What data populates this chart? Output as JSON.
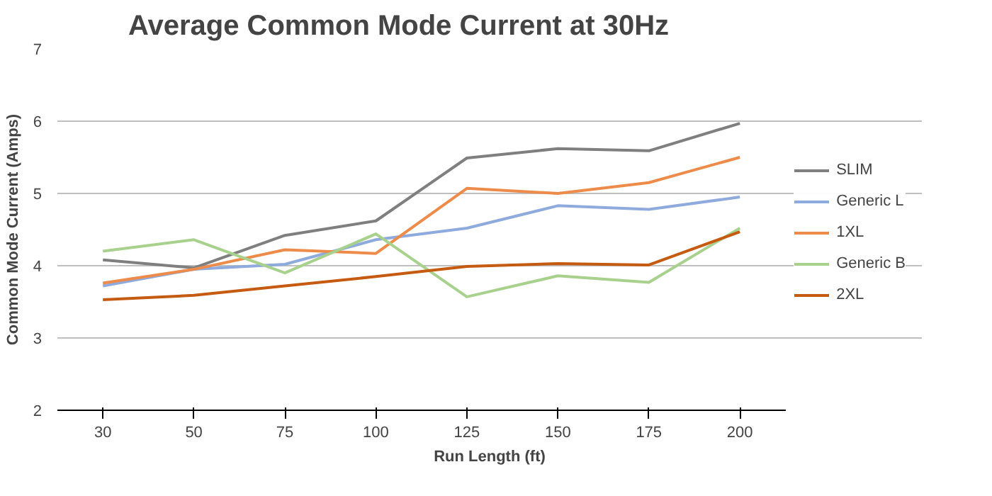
{
  "chart_data": {
    "type": "line",
    "title": "Average Common Mode Current at 30Hz",
    "xlabel": "Run Length (ft)",
    "ylabel": "Common Mode Current (Amps)",
    "categories": [
      "30",
      "50",
      "75",
      "100",
      "125",
      "150",
      "175",
      "200"
    ],
    "ylim": [
      2,
      7
    ],
    "yticks": [
      2,
      3,
      4,
      5,
      6,
      7
    ],
    "grid": "y",
    "legend": "right",
    "marker": "none",
    "line_style": "solid",
    "series": [
      {
        "name": "SLIM",
        "color": "#7f7f7f",
        "values": [
          4.08,
          3.97,
          4.42,
          4.62,
          5.49,
          5.62,
          5.59,
          5.97
        ]
      },
      {
        "name": "Generic L",
        "color": "#8faadc",
        "values": [
          3.72,
          3.95,
          4.02,
          4.36,
          4.52,
          4.83,
          4.78,
          4.95
        ]
      },
      {
        "name": "1XL",
        "color": "#ed8b4a",
        "values": [
          3.76,
          3.95,
          4.22,
          4.17,
          5.07,
          5.0,
          5.15,
          5.5
        ]
      },
      {
        "name": "Generic B",
        "color": "#a9d18e",
        "values": [
          4.2,
          4.36,
          3.9,
          4.44,
          3.57,
          3.86,
          3.77,
          4.52
        ]
      },
      {
        "name": "2XL",
        "color": "#c55a11",
        "values": [
          3.53,
          3.59,
          3.72,
          3.85,
          3.99,
          4.03,
          4.01,
          4.47
        ]
      }
    ]
  }
}
